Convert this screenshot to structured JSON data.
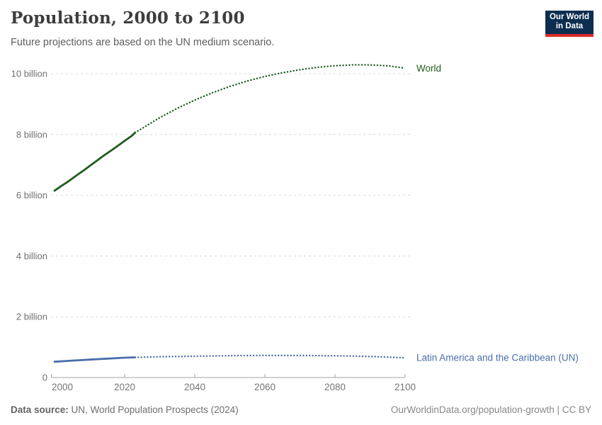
{
  "header": {
    "title": "Population, 2000 to 2100",
    "subtitle": "Future projections are based on the UN medium scenario.",
    "logo": {
      "line1": "Our World",
      "line2": "in Data",
      "bg_color": "#0d2d51",
      "accent_color": "#dc2a2a"
    }
  },
  "footer": {
    "source_label": "Data source:",
    "source_value": " UN, World Population Prospects (2024)",
    "link_text": "OurWorldinData.org/population-growth | CC BY"
  },
  "chart_data": {
    "type": "line",
    "title": "Population, 2000 to 2100",
    "xlabel": "",
    "ylabel": "",
    "unit": "billion people",
    "xlim": [
      2000,
      2100
    ],
    "ylim": [
      0,
      10.8
    ],
    "grid": "horizontal-dashed",
    "projection_note": "solid = historical, dotted = UN medium projection after 2023",
    "x_ticks": [
      2000,
      2020,
      2040,
      2060,
      2080,
      2100
    ],
    "y_ticks": [
      {
        "value": 0,
        "label": "0"
      },
      {
        "value": 2,
        "label": "2 billion"
      },
      {
        "value": 4,
        "label": "4 billion"
      },
      {
        "value": 6,
        "label": "6 billion"
      },
      {
        "value": 8,
        "label": "8 billion"
      },
      {
        "value": 10,
        "label": "10 billion"
      }
    ],
    "series": [
      {
        "name": "World",
        "color": "#1f5c1f",
        "historical": [
          [
            2000,
            6.15
          ],
          [
            2002,
            6.31
          ],
          [
            2004,
            6.46
          ],
          [
            2006,
            6.63
          ],
          [
            2008,
            6.79
          ],
          [
            2010,
            6.96
          ],
          [
            2012,
            7.13
          ],
          [
            2014,
            7.3
          ],
          [
            2016,
            7.46
          ],
          [
            2018,
            7.62
          ],
          [
            2020,
            7.79
          ],
          [
            2022,
            7.95
          ],
          [
            2023,
            8.06
          ]
        ],
        "projection": [
          [
            2023,
            8.06
          ],
          [
            2025,
            8.2
          ],
          [
            2030,
            8.55
          ],
          [
            2035,
            8.86
          ],
          [
            2040,
            9.13
          ],
          [
            2045,
            9.37
          ],
          [
            2050,
            9.58
          ],
          [
            2055,
            9.76
          ],
          [
            2060,
            9.91
          ],
          [
            2065,
            10.03
          ],
          [
            2070,
            10.13
          ],
          [
            2075,
            10.21
          ],
          [
            2080,
            10.26
          ],
          [
            2085,
            10.29
          ],
          [
            2090,
            10.29
          ],
          [
            2095,
            10.26
          ],
          [
            2100,
            10.18
          ]
        ]
      },
      {
        "name": "Latin America and the Caribbean (UN)",
        "color": "#4a6eaa",
        "historical": [
          [
            2000,
            0.52
          ],
          [
            2005,
            0.556
          ],
          [
            2010,
            0.59
          ],
          [
            2015,
            0.623
          ],
          [
            2020,
            0.652
          ],
          [
            2023,
            0.664
          ]
        ],
        "projection": [
          [
            2023,
            0.664
          ],
          [
            2030,
            0.682
          ],
          [
            2040,
            0.702
          ],
          [
            2050,
            0.718
          ],
          [
            2060,
            0.727
          ],
          [
            2070,
            0.725
          ],
          [
            2080,
            0.715
          ],
          [
            2090,
            0.695
          ],
          [
            2100,
            0.65
          ]
        ]
      }
    ]
  }
}
